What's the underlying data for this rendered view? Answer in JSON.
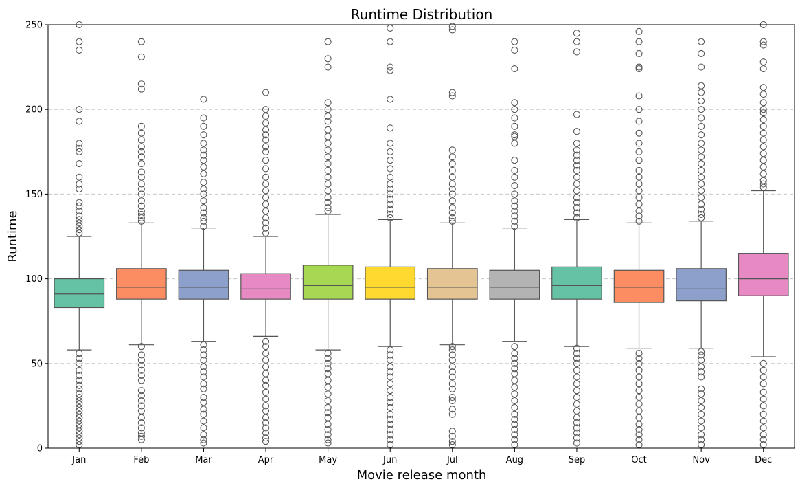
{
  "chart_data": {
    "type": "box",
    "title": "Runtime Distribution",
    "xlabel": "Movie release month",
    "ylabel": "Runtime",
    "ylim": [
      0,
      250
    ],
    "yticks": [
      0,
      50,
      100,
      150,
      200,
      250
    ],
    "grid": "y-dashed",
    "categories": [
      "Jan",
      "Feb",
      "Mar",
      "Apr",
      "May",
      "Jun",
      "Jul",
      "Aug",
      "Sep",
      "Oct",
      "Nov",
      "Dec"
    ],
    "colors": [
      "#66c2a5",
      "#fc8d62",
      "#8da0cb",
      "#e78ac3",
      "#a6d854",
      "#ffd92f",
      "#e5c494",
      "#b3b3b3",
      "#66c2a5",
      "#fc8d62",
      "#8da0cb",
      "#e78ac3"
    ],
    "boxes": [
      {
        "q1": 83,
        "median": 91,
        "q3": 100,
        "whislo": 58,
        "whishi": 125,
        "fliers_high": [
          127,
          129,
          131,
          133,
          135,
          137,
          140,
          143,
          145,
          153,
          156,
          160,
          168,
          175,
          177,
          180,
          193,
          200,
          235,
          240,
          250
        ],
        "fliers_low": [
          2,
          4,
          6,
          8,
          10,
          12,
          14,
          16,
          18,
          20,
          22,
          24,
          26,
          28,
          30,
          32,
          35,
          37,
          40,
          43,
          46,
          50,
          53,
          56
        ]
      },
      {
        "q1": 88,
        "median": 95,
        "q3": 106,
        "whislo": 61,
        "whishi": 133,
        "fliers_high": [
          134,
          136,
          138,
          140,
          143,
          146,
          150,
          153,
          156,
          160,
          163,
          168,
          172,
          175,
          178,
          182,
          186,
          190,
          212,
          215,
          231,
          240
        ],
        "fliers_low": [
          5,
          7,
          9,
          12,
          15,
          18,
          22,
          25,
          28,
          31,
          34,
          40,
          43,
          46,
          49,
          52,
          55,
          60
        ]
      },
      {
        "q1": 88,
        "median": 95,
        "q3": 105,
        "whislo": 63,
        "whishi": 130,
        "fliers_high": [
          131,
          134,
          136,
          139,
          142,
          146,
          150,
          153,
          157,
          162,
          166,
          170,
          173,
          176,
          180,
          185,
          190,
          195,
          206
        ],
        "fliers_low": [
          3,
          5,
          8,
          12,
          16,
          20,
          23,
          27,
          30,
          35,
          38,
          42,
          45,
          48,
          52,
          55,
          58,
          61
        ]
      },
      {
        "q1": 88,
        "median": 94,
        "q3": 103,
        "whislo": 66,
        "whishi": 125,
        "fliers_high": [
          127,
          130,
          133,
          136,
          140,
          144,
          148,
          152,
          156,
          160,
          165,
          170,
          175,
          178,
          182,
          185,
          188,
          192,
          196,
          200,
          210
        ],
        "fliers_low": [
          4,
          6,
          9,
          12,
          15,
          18,
          22,
          25,
          29,
          33,
          37,
          40,
          44,
          48,
          52,
          56,
          60,
          63
        ]
      },
      {
        "q1": 88,
        "median": 96,
        "q3": 108,
        "whislo": 58,
        "whishi": 138,
        "fliers_high": [
          140,
          142,
          145,
          148,
          152,
          156,
          160,
          164,
          168,
          172,
          176,
          180,
          184,
          188,
          193,
          196,
          200,
          204,
          225,
          230,
          240
        ],
        "fliers_low": [
          3,
          5,
          8,
          11,
          14,
          18,
          21,
          24,
          28,
          32,
          36,
          40,
          44,
          47,
          50,
          53,
          56
        ]
      },
      {
        "q1": 88,
        "median": 95,
        "q3": 107,
        "whislo": 60,
        "whishi": 135,
        "fliers_high": [
          136,
          138,
          141,
          144,
          147,
          150,
          153,
          156,
          160,
          165,
          170,
          175,
          180,
          189,
          206,
          223,
          225,
          240,
          248
        ],
        "fliers_low": [
          2,
          5,
          8,
          11,
          14,
          17,
          20,
          24,
          27,
          30,
          34,
          38,
          42,
          45,
          48,
          52,
          55,
          58
        ]
      },
      {
        "q1": 88,
        "median": 95,
        "q3": 106,
        "whislo": 61,
        "whishi": 133,
        "fliers_high": [
          134,
          136,
          139,
          142,
          146,
          150,
          153,
          156,
          160,
          164,
          168,
          172,
          176,
          208,
          210,
          247,
          249
        ],
        "fliers_low": [
          2,
          4,
          7,
          10,
          20,
          23,
          28,
          30,
          35,
          38,
          42,
          45,
          48,
          52,
          55,
          58,
          60
        ]
      },
      {
        "q1": 88,
        "median": 95,
        "q3": 105,
        "whislo": 63,
        "whishi": 130,
        "fliers_high": [
          131,
          134,
          137,
          140,
          143,
          146,
          150,
          155,
          160,
          164,
          170,
          180,
          184,
          185,
          190,
          195,
          200,
          204,
          224,
          235,
          240
        ],
        "fliers_low": [
          2,
          5,
          8,
          11,
          14,
          17,
          20,
          24,
          28,
          32,
          36,
          40,
          44,
          47,
          50,
          53,
          56,
          60
        ]
      },
      {
        "q1": 88,
        "median": 96,
        "q3": 107,
        "whislo": 60,
        "whishi": 135,
        "fliers_high": [
          136,
          139,
          142,
          145,
          148,
          152,
          156,
          160,
          164,
          167,
          170,
          173,
          176,
          180,
          187,
          197,
          234,
          240,
          245
        ],
        "fliers_low": [
          3,
          6,
          9,
          12,
          15,
          18,
          22,
          26,
          30,
          34,
          38,
          42,
          46,
          50,
          53,
          56,
          59
        ]
      },
      {
        "q1": 86,
        "median": 95,
        "q3": 105,
        "whislo": 59,
        "whishi": 133,
        "fliers_high": [
          134,
          137,
          140,
          144,
          148,
          152,
          156,
          160,
          164,
          170,
          175,
          180,
          186,
          193,
          200,
          208,
          224,
          225,
          233,
          240,
          246
        ],
        "fliers_low": [
          2,
          5,
          8,
          11,
          14,
          18,
          22,
          26,
          30,
          34,
          38,
          42,
          46,
          50,
          53,
          56
        ]
      },
      {
        "q1": 87,
        "median": 94,
        "q3": 106,
        "whislo": 59,
        "whishi": 134,
        "fliers_high": [
          136,
          138,
          141,
          144,
          148,
          152,
          156,
          160,
          164,
          168,
          172,
          176,
          180,
          185,
          190,
          195,
          200,
          205,
          210,
          214,
          225,
          233,
          240
        ],
        "fliers_low": [
          2,
          5,
          8,
          12,
          16,
          20,
          24,
          28,
          32,
          35,
          42,
          45,
          48,
          52,
          55,
          57
        ]
      },
      {
        "q1": 90,
        "median": 100,
        "q3": 115,
        "whislo": 54,
        "whishi": 152,
        "fliers_high": [
          154,
          156,
          158,
          162,
          166,
          170,
          174,
          178,
          182,
          186,
          190,
          194,
          198,
          200,
          204,
          209,
          213,
          224,
          228,
          238,
          240,
          250
        ],
        "fliers_low": [
          2,
          5,
          8,
          12,
          16,
          20,
          25,
          29,
          33,
          38,
          42,
          46,
          50
        ]
      }
    ]
  }
}
